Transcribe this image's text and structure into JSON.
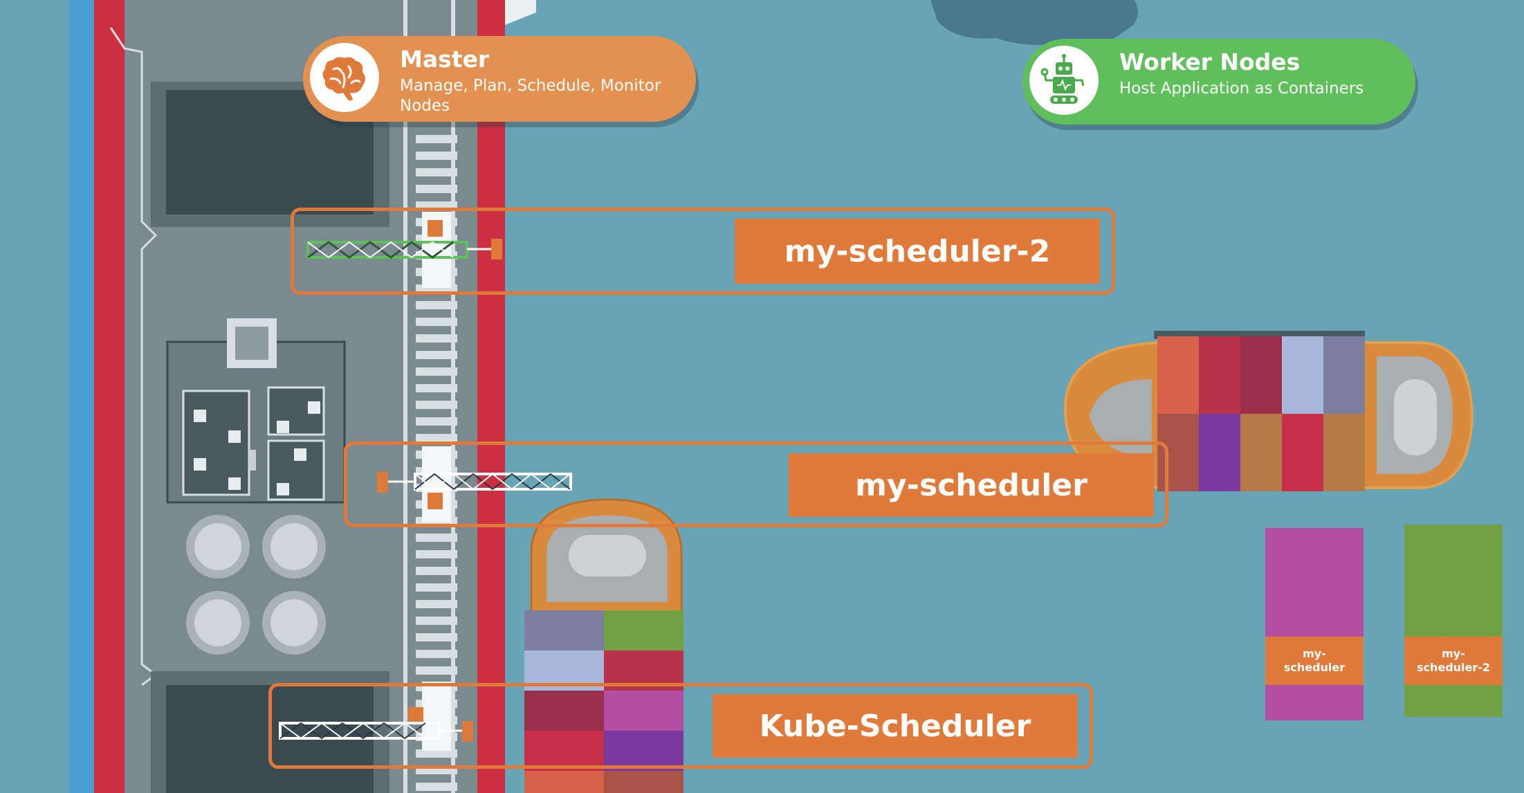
{
  "master": {
    "title": "Master",
    "subtitle": "Manage, Plan, Schedule, Monitor Nodes",
    "icon": "brain-icon",
    "color": "#e39150"
  },
  "worker": {
    "title": "Worker Nodes",
    "subtitle": "Host Application as Containers",
    "icon": "robot-icon",
    "color": "#5fbf5a"
  },
  "schedulers": [
    {
      "label": "my-scheduler-2",
      "crane_color": "#5fbf5a"
    },
    {
      "label": "my-scheduler",
      "crane_color": "#ffffff"
    },
    {
      "label": "Kube-Scheduler",
      "crane_color": "#ffffff"
    }
  ],
  "containers": [
    {
      "label": "my-scheduler",
      "color": "#b34fa3"
    },
    {
      "label": "my-scheduler-2",
      "color": "#72a043"
    }
  ],
  "colors": {
    "water": "#67a4b6",
    "accent": "#e07a3a",
    "dock": "#7b8a90"
  }
}
